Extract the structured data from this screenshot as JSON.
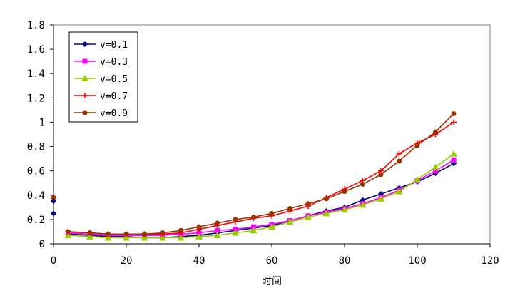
{
  "chart_data": {
    "type": "line",
    "title": "",
    "xlabel": "时间",
    "ylabel": "",
    "xlim": [
      0,
      120
    ],
    "ylim": [
      0,
      1.8
    ],
    "x_ticks": [
      0,
      20,
      40,
      60,
      80,
      100,
      120
    ],
    "y_ticks": [
      0,
      0.2,
      0.4,
      0.6,
      0.8,
      1,
      1.2,
      1.4,
      1.6,
      1.8
    ],
    "x_tick_labels": [
      "0",
      "20",
      "40",
      "60",
      "80",
      "100",
      "120"
    ],
    "y_tick_labels": [
      "0",
      "0.2",
      "0.4",
      "0.6",
      "0.8",
      "1",
      "1.2",
      "1.4",
      "1.6",
      "1.8"
    ],
    "grid": false,
    "legend_position": "top-left",
    "x": [
      4,
      10,
      15,
      20,
      25,
      30,
      35,
      40,
      45,
      50,
      55,
      60,
      65,
      70,
      75,
      80,
      85,
      90,
      95,
      100,
      105,
      110
    ],
    "series": [
      {
        "name": "v=0.1",
        "color": "#000080",
        "marker": "diamond",
        "values": [
          0.08,
          0.07,
          0.06,
          0.06,
          0.05,
          0.05,
          0.06,
          0.07,
          0.09,
          0.11,
          0.13,
          0.15,
          0.19,
          0.23,
          0.27,
          0.3,
          0.36,
          0.41,
          0.46,
          0.51,
          0.58,
          0.66
        ]
      },
      {
        "name": "v=0.3",
        "color": "#ff00ff",
        "marker": "square",
        "values": [
          0.09,
          0.08,
          0.07,
          0.07,
          0.07,
          0.07,
          0.08,
          0.09,
          0.11,
          0.12,
          0.14,
          0.16,
          0.19,
          0.23,
          0.26,
          0.29,
          0.33,
          0.38,
          0.44,
          0.52,
          0.6,
          0.69
        ]
      },
      {
        "name": "v=0.5",
        "color": "#99cc00",
        "marker": "triangle",
        "values": [
          0.07,
          0.06,
          0.05,
          0.05,
          0.05,
          0.05,
          0.05,
          0.06,
          0.07,
          0.09,
          0.11,
          0.14,
          0.18,
          0.22,
          0.25,
          0.28,
          0.32,
          0.37,
          0.43,
          0.53,
          0.63,
          0.74
        ]
      },
      {
        "name": "v=0.7",
        "color": "#ff0000",
        "marker": "plus",
        "values": [
          0.1,
          0.09,
          0.08,
          0.08,
          0.08,
          0.08,
          0.09,
          0.12,
          0.15,
          0.18,
          0.21,
          0.23,
          0.27,
          0.31,
          0.38,
          0.45,
          0.52,
          0.6,
          0.74,
          0.83,
          0.9,
          1.0
        ]
      },
      {
        "name": "v=0.9",
        "color": "#993300",
        "marker": "circle",
        "values": [
          0.1,
          0.09,
          0.08,
          0.08,
          0.08,
          0.09,
          0.11,
          0.14,
          0.17,
          0.2,
          0.22,
          0.25,
          0.29,
          0.33,
          0.37,
          0.43,
          0.49,
          0.57,
          0.68,
          0.81,
          0.92,
          1.07
        ]
      }
    ],
    "outliers": [
      {
        "x": 0,
        "y": 0.38
      },
      {
        "x": 0,
        "y": 0.35
      },
      {
        "x": 0,
        "y": 0.25
      }
    ]
  }
}
